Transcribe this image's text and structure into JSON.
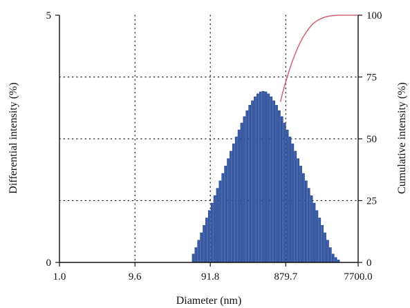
{
  "chart_data": {
    "type": "bar",
    "xlabel": "Diameter (nm)",
    "ylabel_left": "Differential intensity (%)",
    "ylabel_right": "Cumulative intensity (%)",
    "x_scale": "log",
    "xlim": [
      1.0,
      7700.0
    ],
    "x_ticks": [
      "1.0",
      "9.6",
      "91.8",
      "879.7",
      "7700.0"
    ],
    "x_tick_values": [
      1.0,
      9.6,
      91.8,
      879.7,
      7700.0
    ],
    "ylim_left": [
      0,
      5
    ],
    "y_ticks_left": [
      "0",
      "5"
    ],
    "y_tick_values_left": [
      0,
      5
    ],
    "ylim_right": [
      0,
      100
    ],
    "y_ticks_right": [
      "0",
      "25",
      "50",
      "75",
      "100"
    ],
    "y_tick_values_right": [
      0,
      25,
      50,
      75,
      100
    ],
    "grid": true,
    "bar_color": "#3a5ea8",
    "bar_edge_color": "#26418a",
    "curve_color": "#d06a7a",
    "series": [
      {
        "type": "bar",
        "axis": "left",
        "x": [
          55.5,
          60.1,
          65.2,
          70.7,
          76.6,
          83.0,
          90.0,
          97.5,
          105.7,
          114.6,
          124.2,
          134.6,
          145.9,
          158.2,
          171.4,
          185.8,
          201.4,
          218.3,
          236.6,
          256.5,
          278.0,
          301.3,
          326.6,
          354.0,
          383.7,
          415.9,
          450.8,
          488.6,
          529.6,
          574.0,
          622.2,
          674.4,
          731.0,
          792.3,
          858.8,
          930.9,
          1008.9,
          1093.6,
          1185.4,
          1284.9,
          1392.7,
          1509.5,
          1636.2,
          1773.5,
          1922.3,
          2083.6,
          2258.4,
          2447.9,
          2653.3,
          2876.0,
          3117.3,
          3378.9,
          3662.4,
          3969.7,
          4302.8
        ],
        "values": [
          0.17,
          0.3,
          0.45,
          0.6,
          0.75,
          0.9,
          1.05,
          1.2,
          1.35,
          1.5,
          1.65,
          1.8,
          1.95,
          2.1,
          2.25,
          2.4,
          2.54,
          2.68,
          2.82,
          2.95,
          3.07,
          3.18,
          3.27,
          3.35,
          3.41,
          3.45,
          3.46,
          3.45,
          3.41,
          3.35,
          3.27,
          3.18,
          3.07,
          2.95,
          2.82,
          2.68,
          2.54,
          2.4,
          2.25,
          2.1,
          1.95,
          1.8,
          1.65,
          1.5,
          1.35,
          1.2,
          1.05,
          0.9,
          0.75,
          0.6,
          0.45,
          0.3,
          0.17,
          0.1,
          0.05
        ]
      },
      {
        "type": "line",
        "axis": "right",
        "x": [
          750,
          800,
          860,
          930,
          1010,
          1100,
          1200,
          1320,
          1460,
          1620,
          1800,
          2000,
          2250,
          2550,
          2900,
          3300,
          3800,
          4400,
          5100,
          6000,
          7000,
          7700
        ],
        "values": [
          65,
          68.5,
          72,
          75.5,
          79,
          82.3,
          85.3,
          88.2,
          90.8,
          93.1,
          95,
          96.6,
          97.8,
          98.7,
          99.3,
          99.7,
          99.9,
          100,
          100,
          100,
          100,
          100
        ]
      }
    ]
  }
}
